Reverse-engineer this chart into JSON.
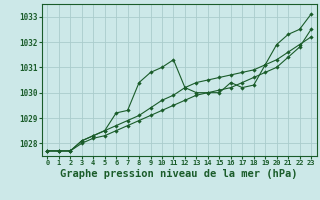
{
  "title": "Graphe pression niveau de la mer (hPa)",
  "bg_color": "#cce8e8",
  "grid_color": "#aacccc",
  "line_color": "#1a5c2a",
  "xlim": [
    -0.5,
    23.5
  ],
  "ylim": [
    1027.5,
    1033.5
  ],
  "yticks": [
    1028,
    1029,
    1030,
    1031,
    1032,
    1033
  ],
  "xticks": [
    0,
    1,
    2,
    3,
    4,
    5,
    6,
    7,
    8,
    9,
    10,
    11,
    12,
    13,
    14,
    15,
    16,
    17,
    18,
    19,
    20,
    21,
    22,
    23
  ],
  "series1": [
    1027.7,
    1027.7,
    1027.7,
    1028.1,
    1028.3,
    1028.5,
    1029.2,
    1029.3,
    1030.4,
    1030.8,
    1031.0,
    1031.3,
    1030.2,
    1030.0,
    1030.0,
    1030.0,
    1030.4,
    1030.2,
    1030.3,
    1031.1,
    1031.9,
    1032.3,
    1032.5,
    1033.1
  ],
  "series2": [
    1027.7,
    1027.7,
    1027.7,
    1028.1,
    1028.3,
    1028.5,
    1028.7,
    1028.9,
    1029.1,
    1029.4,
    1029.7,
    1029.9,
    1030.2,
    1030.4,
    1030.5,
    1030.6,
    1030.7,
    1030.8,
    1030.9,
    1031.1,
    1031.3,
    1031.6,
    1031.9,
    1032.2
  ],
  "series3": [
    1027.7,
    1027.7,
    1027.7,
    1028.0,
    1028.2,
    1028.3,
    1028.5,
    1028.7,
    1028.9,
    1029.1,
    1029.3,
    1029.5,
    1029.7,
    1029.9,
    1030.0,
    1030.1,
    1030.2,
    1030.4,
    1030.6,
    1030.8,
    1031.0,
    1031.4,
    1031.8,
    1032.5
  ],
  "ylabel_fontsize": 5.5,
  "xlabel_fontsize": 5.5,
  "title_fontsize": 7.5
}
